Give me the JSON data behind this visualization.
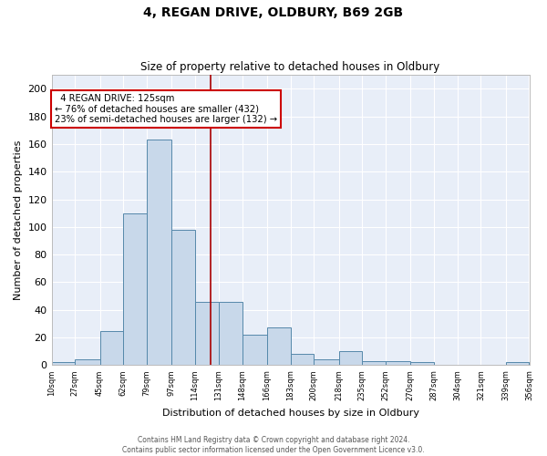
{
  "title1": "4, REGAN DRIVE, OLDBURY, B69 2GB",
  "title2": "Size of property relative to detached houses in Oldbury",
  "xlabel": "Distribution of detached houses by size in Oldbury",
  "ylabel": "Number of detached properties",
  "bin_edges": [
    10,
    27,
    45,
    62,
    79,
    97,
    114,
    131,
    148,
    166,
    183,
    200,
    218,
    235,
    252,
    270,
    287,
    304,
    321,
    339,
    356
  ],
  "bar_heights": [
    2,
    4,
    25,
    110,
    163,
    98,
    46,
    46,
    22,
    27,
    8,
    4,
    10,
    3,
    3,
    2,
    0,
    0,
    0,
    2
  ],
  "bar_color": "#c8d8ea",
  "bar_edge_color": "#5588aa",
  "property_size": 125,
  "vline_color": "#aa0000",
  "annotation_text": "  4 REGAN DRIVE: 125sqm\n← 76% of detached houses are smaller (432)\n23% of semi-detached houses are larger (132) →",
  "annotation_box_color": "#ffffff",
  "annotation_box_edge_color": "#cc0000",
  "ylim": [
    0,
    210
  ],
  "yticks": [
    0,
    20,
    40,
    60,
    80,
    100,
    120,
    140,
    160,
    180,
    200
  ],
  "fig_bg_color": "#ffffff",
  "ax_bg_color": "#e8eef8",
  "grid_color": "#ffffff",
  "footer1": "Contains HM Land Registry data © Crown copyright and database right 2024.",
  "footer2": "Contains public sector information licensed under the Open Government Licence v3.0."
}
